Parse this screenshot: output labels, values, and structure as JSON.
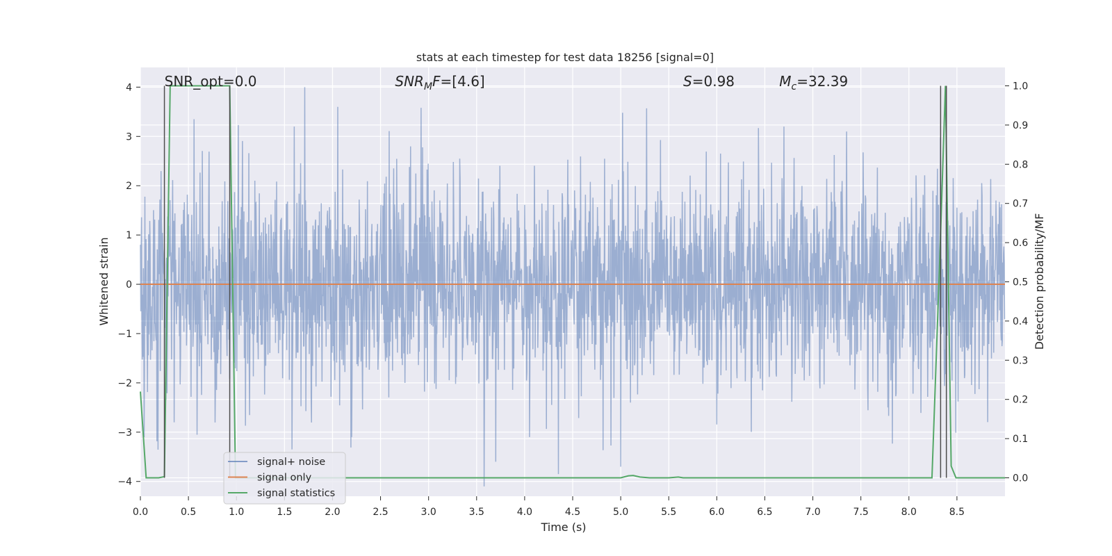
{
  "chart_data": {
    "type": "line",
    "title": "stats at each timestep for test data 18256 [signal=0]",
    "xlabel": "Time (s)",
    "ylabel": "Whitened strain",
    "y2label": "Detection probability/MF",
    "xlim": [
      0.0,
      9.0
    ],
    "ylim": [
      -4.3,
      4.4
    ],
    "y2lim": [
      -0.047,
      1.047
    ],
    "xticks": [
      0.0,
      0.5,
      1.0,
      1.5,
      2.0,
      2.5,
      3.0,
      3.5,
      4.0,
      4.5,
      5.0,
      5.5,
      6.0,
      6.5,
      7.0,
      7.5,
      8.0,
      8.5
    ],
    "xtick_labels": [
      "0.0",
      "0.5",
      "1.0",
      "1.5",
      "2.0",
      "2.5",
      "3.0",
      "3.5",
      "4.0",
      "4.5",
      "5.0",
      "5.5",
      "6.0",
      "6.5",
      "7.0",
      "7.5",
      "8.0",
      "8.5"
    ],
    "yticks": [
      -4,
      -3,
      -2,
      -1,
      0,
      1,
      2,
      3,
      4
    ],
    "ytick_labels": [
      "−4",
      "−3",
      "−2",
      "−1",
      "0",
      "1",
      "2",
      "3",
      "4"
    ],
    "y2ticks": [
      0.0,
      0.1,
      0.2,
      0.3,
      0.4,
      0.5,
      0.6,
      0.7,
      0.8,
      0.9,
      1.0
    ],
    "y2tick_labels": [
      "0.0",
      "0.1",
      "0.2",
      "0.3",
      "0.4",
      "0.5",
      "0.6",
      "0.7",
      "0.8",
      "0.9",
      "1.0"
    ],
    "grid": true,
    "legend_position": "lower-left",
    "background": "#eaeaf2",
    "annotations": [
      {
        "plain": "SNR_opt=0.0",
        "x": 0.2
      },
      {
        "italic": "SNR",
        "sub": "M",
        "rest_italic": "F",
        "rest": "=[4.6]",
        "x": 2.6
      },
      {
        "italic": "S",
        "rest": "=0.98",
        "x": 5.6
      },
      {
        "italic": "M",
        "sub": "c",
        "rest": "=32.39",
        "x": 6.6
      }
    ],
    "series": [
      {
        "name": "signal+ noise",
        "color": "#4c72b0",
        "opacity": 0.5,
        "axis": "left",
        "kind": "noise",
        "x_range": [
          0.0,
          9.0
        ],
        "sample_rate_hz": 256,
        "std": 1.05,
        "seed": 18256,
        "spikes": [
          {
            "x": 1.71,
            "y": 4.0
          },
          {
            "x": 3.58,
            "y": -4.1
          },
          {
            "x": 4.35,
            "y": -3.85
          },
          {
            "x": 5.0,
            "y": -3.7
          },
          {
            "x": 0.35,
            "y": -2.8
          },
          {
            "x": 1.58,
            "y": -3.35
          },
          {
            "x": 2.92,
            "y": 3.58
          },
          {
            "x": 5.27,
            "y": 3.57
          },
          {
            "x": 5.02,
            "y": 3.48
          },
          {
            "x": 1.6,
            "y": 3.2
          },
          {
            "x": 0.56,
            "y": 3.35
          },
          {
            "x": 2.2,
            "y": -3.1
          },
          {
            "x": 4.05,
            "y": -3.1
          },
          {
            "x": 6.7,
            "y": 3.2
          },
          {
            "x": 7.35,
            "y": 3.1
          }
        ]
      },
      {
        "name": "signal only",
        "color": "#dd8452",
        "axis": "left",
        "x": [
          0.0,
          9.0
        ],
        "y": [
          0.0,
          0.0
        ]
      },
      {
        "name": "signal statistics",
        "color": "#55a868",
        "axis": "right",
        "x": [
          0.0,
          0.06,
          0.19,
          0.25,
          0.31,
          0.93,
          0.99,
          1.06,
          5.0,
          5.08,
          5.13,
          5.2,
          5.3,
          5.5,
          5.6,
          5.65,
          8.24,
          8.32,
          8.38,
          8.44,
          8.49,
          9.0
        ],
        "y": [
          0.22,
          0.0,
          0.0,
          0.003,
          1.0,
          1.0,
          0.0,
          0.0,
          0.0,
          0.005,
          0.006,
          0.002,
          0.0,
          0.0,
          0.002,
          0.0,
          0.0,
          0.55,
          1.0,
          0.03,
          0.0,
          0.0
        ]
      }
    ],
    "vertical_lines": {
      "color": "#4d4d4d",
      "axis": "right",
      "y_range": [
        0.0,
        1.0
      ],
      "x": [
        0.25,
        0.93,
        8.33,
        8.39
      ]
    }
  }
}
